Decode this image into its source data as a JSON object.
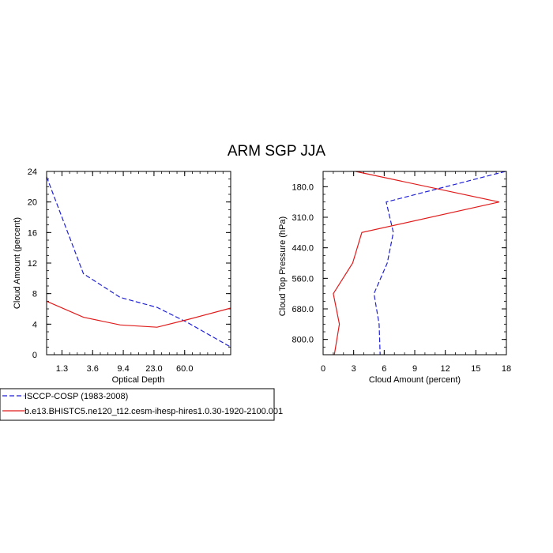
{
  "title": "ARM SGP JJA",
  "colors": {
    "obs": "#1f1fd6",
    "model": "#e01b1b",
    "axis": "#000000"
  },
  "legend": [
    {
      "label": "ISCCP-COSP (1983-2008)",
      "style": "dashed",
      "color": "#1f1fd6"
    },
    {
      "label": "b.e13.BHISTC5.ne120_t12.cesm-ihesp-hires1.0.30-1920-2100.001",
      "style": "solid",
      "color": "#e01b1b"
    }
  ],
  "chart_data": [
    {
      "type": "line",
      "xlabel": "Optical Depth",
      "ylabel": "Cloud Amount (percent)",
      "xlim": [
        0,
        6
      ],
      "ylim": [
        0,
        24
      ],
      "xticks": [
        {
          "value": 0.5,
          "label": "1.3"
        },
        {
          "value": 1.5,
          "label": "3.6"
        },
        {
          "value": 2.5,
          "label": "9.4"
        },
        {
          "value": 3.5,
          "label": "23.0"
        },
        {
          "value": 4.5,
          "label": "60.0"
        }
      ],
      "yticks": [
        0,
        4,
        8,
        12,
        16,
        20,
        24
      ],
      "series": [
        {
          "name": "ISCCP-COSP (1983-2008)",
          "style": "dashed",
          "x": [
            0,
            1.2,
            2.4,
            3.6,
            4.6,
            6
          ],
          "y": [
            23.3,
            10.6,
            7.5,
            6.2,
            4.2,
            1.0
          ]
        },
        {
          "name": "b.e13.BHISTC5.ne120_t12.cesm-ihesp-hires1.0.30-1920-2100.001",
          "style": "solid",
          "x": [
            0,
            1.2,
            2.4,
            3.6,
            4.6,
            6
          ],
          "y": [
            7.0,
            4.9,
            3.9,
            3.6,
            4.6,
            6.1
          ]
        }
      ]
    },
    {
      "type": "line",
      "xlabel": "Cloud Amount (percent)",
      "ylabel": "Cloud Top Pressure (hPa)",
      "xlim": [
        0,
        18
      ],
      "ylim": [
        0,
        6
      ],
      "y_inverted": true,
      "xticks": [
        0,
        3,
        6,
        9,
        12,
        15,
        18
      ],
      "yticks": [
        {
          "value": 0.5,
          "label": "180.0"
        },
        {
          "value": 1.5,
          "label": "310.0"
        },
        {
          "value": 2.5,
          "label": "440.0"
        },
        {
          "value": 3.5,
          "label": "560.0"
        },
        {
          "value": 4.5,
          "label": "680.0"
        },
        {
          "value": 5.5,
          "label": "800.0"
        }
      ],
      "series": [
        {
          "name": "ISCCP-COSP (1983-2008)",
          "style": "dashed",
          "x": [
            17.9,
            6.2,
            6.9,
            6.3,
            5.0,
            5.5,
            5.6
          ],
          "y": [
            0,
            1.0,
            2.0,
            3.0,
            4.0,
            5.0,
            6.0
          ]
        },
        {
          "name": "b.e13.BHISTC5.ne120_t12.cesm-ihesp-hires1.0.30-1920-2100.001",
          "style": "solid",
          "x": [
            3.2,
            17.3,
            3.8,
            2.9,
            1.0,
            1.6,
            1.1
          ],
          "y": [
            0,
            1.0,
            2.0,
            3.0,
            4.0,
            5.0,
            6.0
          ]
        }
      ]
    }
  ]
}
